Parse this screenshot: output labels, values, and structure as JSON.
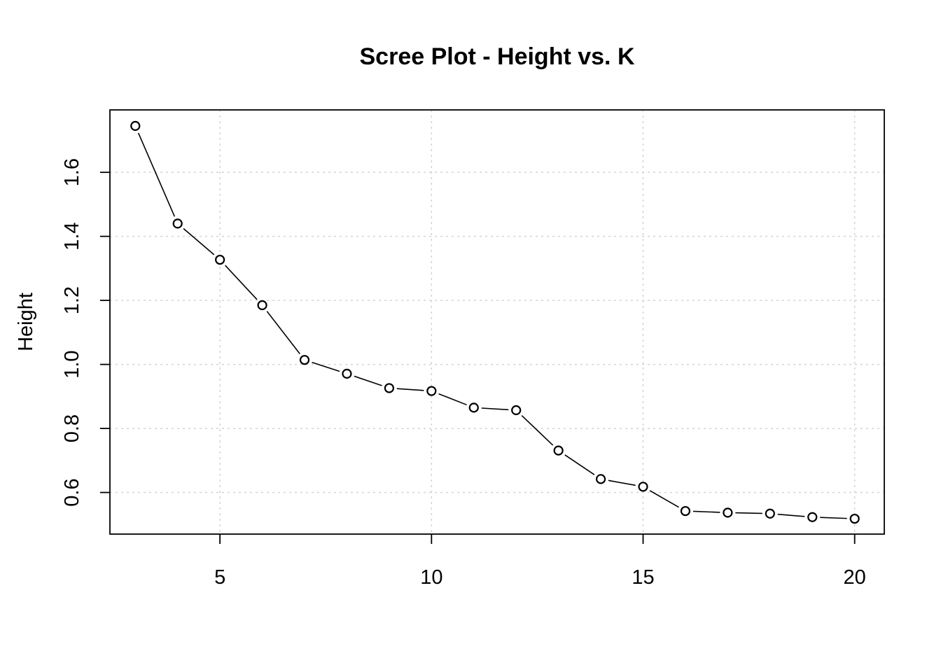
{
  "chart_data": {
    "type": "line",
    "title": "Scree Plot - Height vs. K",
    "xlabel": "",
    "ylabel": "Height",
    "x": [
      3,
      4,
      5,
      6,
      7,
      8,
      9,
      10,
      11,
      12,
      13,
      14,
      15,
      16,
      17,
      18,
      19,
      20
    ],
    "series": [
      {
        "values": [
          1.745,
          1.44,
          1.327,
          1.185,
          1.014,
          0.971,
          0.926,
          0.917,
          0.865,
          0.857,
          0.731,
          0.642,
          0.618,
          0.542,
          0.537,
          0.534,
          0.523,
          0.518
        ]
      }
    ],
    "xlim": [
      2.4,
      20.7
    ],
    "ylim": [
      0.47,
      1.795
    ],
    "xticks": [
      5,
      10,
      15,
      20
    ],
    "yticks": [
      0.6,
      0.8,
      1.0,
      1.2,
      1.4,
      1.6
    ],
    "xtick_labels": [
      "5",
      "10",
      "15",
      "20"
    ],
    "ytick_labels": [
      "0.6",
      "0.8",
      "1.0",
      "1.2",
      "1.4",
      "1.6"
    ],
    "grid": true,
    "line_style": "overplotted-b",
    "marker": "open-circle",
    "colors": {
      "line": "#000000",
      "marker_fill": "#ffffff",
      "grid": "#d3d3d3"
    }
  }
}
